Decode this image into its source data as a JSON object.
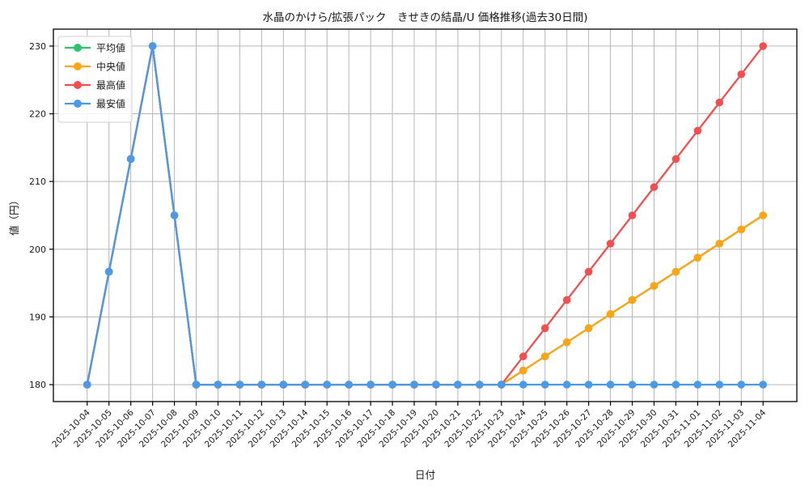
{
  "chart_data": {
    "type": "line",
    "title": "水晶のかけら/拡張パック　きせきの結晶/U 価格推移(過去30日間)",
    "xlabel": "日付",
    "ylabel": "値（円）",
    "x": [
      "2025-10-04",
      "2025-10-05",
      "2025-10-06",
      "2025-10-07",
      "2025-10-08",
      "2025-10-09",
      "2025-10-10",
      "2025-10-11",
      "2025-10-12",
      "2025-10-13",
      "2025-10-14",
      "2025-10-15",
      "2025-10-16",
      "2025-10-17",
      "2025-10-18",
      "2025-10-19",
      "2025-10-20",
      "2025-10-21",
      "2025-10-22",
      "2025-10-23",
      "2025-10-24",
      "2025-10-25",
      "2025-10-26",
      "2025-10-27",
      "2025-10-28",
      "2025-10-29",
      "2025-10-30",
      "2025-10-31",
      "2025-11-01",
      "2025-11-02",
      "2025-11-03",
      "2025-11-04"
    ],
    "series": [
      {
        "name": "平均値",
        "color": "#2bc46d",
        "values": [
          180,
          196.67,
          213.33,
          230,
          205,
          180,
          180,
          180,
          180,
          180,
          180,
          180,
          180,
          180,
          180,
          180,
          180,
          180,
          180,
          180,
          182.08,
          184.17,
          186.25,
          188.33,
          190.42,
          192.5,
          194.58,
          196.67,
          198.75,
          200.83,
          202.92,
          205
        ],
        "note": "hidden under 中央値 (identical values)"
      },
      {
        "name": "中央値",
        "color": "#ffa414",
        "values": [
          180,
          196.67,
          213.33,
          230,
          205,
          180,
          180,
          180,
          180,
          180,
          180,
          180,
          180,
          180,
          180,
          180,
          180,
          180,
          180,
          180,
          182.08,
          184.17,
          186.25,
          188.33,
          190.42,
          192.5,
          194.58,
          196.67,
          198.75,
          200.83,
          202.92,
          205
        ]
      },
      {
        "name": "最高値",
        "color": "#f25050",
        "values": [
          180,
          196.67,
          213.33,
          230,
          205,
          180,
          180,
          180,
          180,
          180,
          180,
          180,
          180,
          180,
          180,
          180,
          180,
          180,
          180,
          180,
          184.17,
          188.33,
          192.5,
          196.67,
          200.83,
          205,
          209.17,
          213.33,
          217.5,
          221.67,
          225.83,
          230
        ]
      },
      {
        "name": "最安値",
        "color": "#4b9ae8",
        "values": [
          180,
          196.67,
          213.33,
          230,
          205,
          180,
          180,
          180,
          180,
          180,
          180,
          180,
          180,
          180,
          180,
          180,
          180,
          180,
          180,
          180,
          180,
          180,
          180,
          180,
          180,
          180,
          180,
          180,
          180,
          180,
          180,
          180
        ]
      }
    ],
    "yticks": [
      180,
      190,
      200,
      210,
      220,
      230
    ],
    "ylim": [
      177.5,
      232.5
    ],
    "grid": true,
    "legend_position": "upper left",
    "x_tick_rotation": 45,
    "colors": {
      "grid": "#b6b6b6",
      "spine": "#000000",
      "legend_border": "#cfcfcf",
      "legend_background": "#ffffff"
    }
  }
}
